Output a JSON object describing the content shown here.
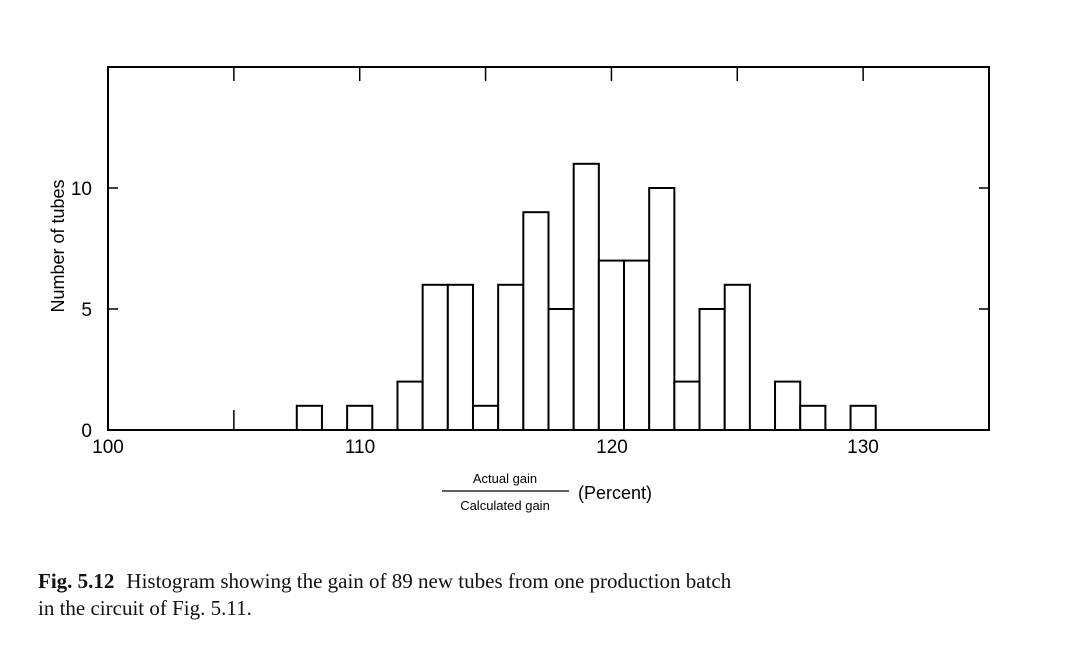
{
  "chart_data": {
    "type": "bar",
    "histogram": true,
    "bin_width": 1,
    "x": [
      108,
      110,
      112,
      113,
      114,
      115,
      116,
      117,
      118,
      119,
      120,
      121,
      122,
      123,
      124,
      125,
      127,
      128,
      130
    ],
    "values": [
      1,
      1,
      2,
      6,
      6,
      1,
      6,
      9,
      5,
      11,
      7,
      7,
      10,
      2,
      5,
      6,
      2,
      1,
      1
    ],
    "xlim": [
      100,
      135
    ],
    "ylim": [
      0,
      15
    ],
    "xticks": [
      "100",
      "110",
      "120",
      "130"
    ],
    "yticks": [
      "0",
      "5",
      "10"
    ],
    "ylabel": "Number of tubes",
    "xlabel": {
      "numerator": "Actual gain",
      "denominator": "Calculated gain",
      "unit": "(Percent)"
    },
    "grid": false
  },
  "caption": {
    "figure_label": "Fig. 5.12",
    "line1": "Histogram showing the gain of 89 new tubes from one production batch",
    "line2": "in the circuit of Fig. 5.11."
  }
}
